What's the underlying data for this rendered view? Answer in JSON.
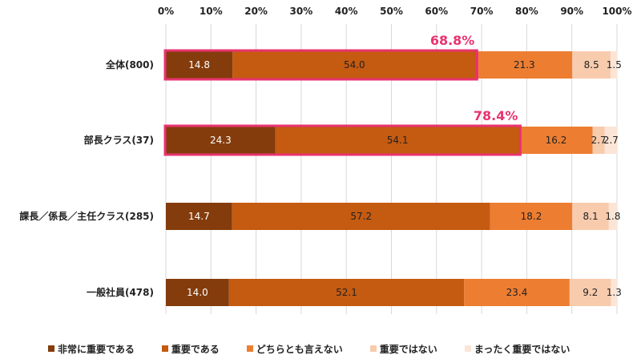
{
  "chart_data": {
    "type": "bar",
    "stacked": true,
    "orientation": "horizontal",
    "categories": [
      "全体(800)",
      "部長クラス(37)",
      "課長／係長／主任クラス(285)",
      "一般社員(478)"
    ],
    "x_ticks": [
      "0%",
      "10%",
      "20%",
      "30%",
      "40%",
      "50%",
      "60%",
      "70%",
      "80%",
      "90%",
      "100%"
    ],
    "xlim": [
      0,
      100
    ],
    "grid": true,
    "legend_position": "bottom",
    "series": [
      {
        "name": "非常に重要である",
        "color": "#843c0c",
        "values": [
          14.8,
          24.3,
          14.7,
          14.0
        ],
        "labels": [
          "14.8",
          "24.3",
          "14.7",
          "14.0"
        ],
        "label_color": "#ffffff"
      },
      {
        "name": "重要である",
        "color": "#c55a11",
        "values": [
          54.0,
          54.1,
          57.2,
          52.1
        ],
        "labels": [
          "54.0",
          "54.1",
          "57.2",
          "52.1"
        ],
        "label_color": "#222222"
      },
      {
        "name": "どちらとも言えない",
        "color": "#ed7d31",
        "values": [
          21.3,
          16.2,
          18.2,
          23.4
        ],
        "labels": [
          "21.3",
          "16.2",
          "18.2",
          "23.4"
        ],
        "label_color": "#222222"
      },
      {
        "name": "重要ではない",
        "color": "#f8cbad",
        "values": [
          8.5,
          2.7,
          8.1,
          9.2
        ],
        "labels": [
          "8.5",
          "2.7",
          "8.1",
          "9.2"
        ],
        "label_color": "#222222"
      },
      {
        "name": "まったく重要ではない",
        "color": "#fbe5d6",
        "values": [
          1.5,
          2.7,
          1.8,
          1.3
        ],
        "labels": [
          "1.5",
          "2.7",
          "1.8",
          "1.3"
        ],
        "label_color": "#222222"
      }
    ],
    "annotations": [
      {
        "category_index": 0,
        "text": "68.8%",
        "value": 68.8,
        "color": "#e8336f"
      },
      {
        "category_index": 1,
        "text": "78.4%",
        "value": 78.4,
        "color": "#e8336f"
      }
    ]
  }
}
